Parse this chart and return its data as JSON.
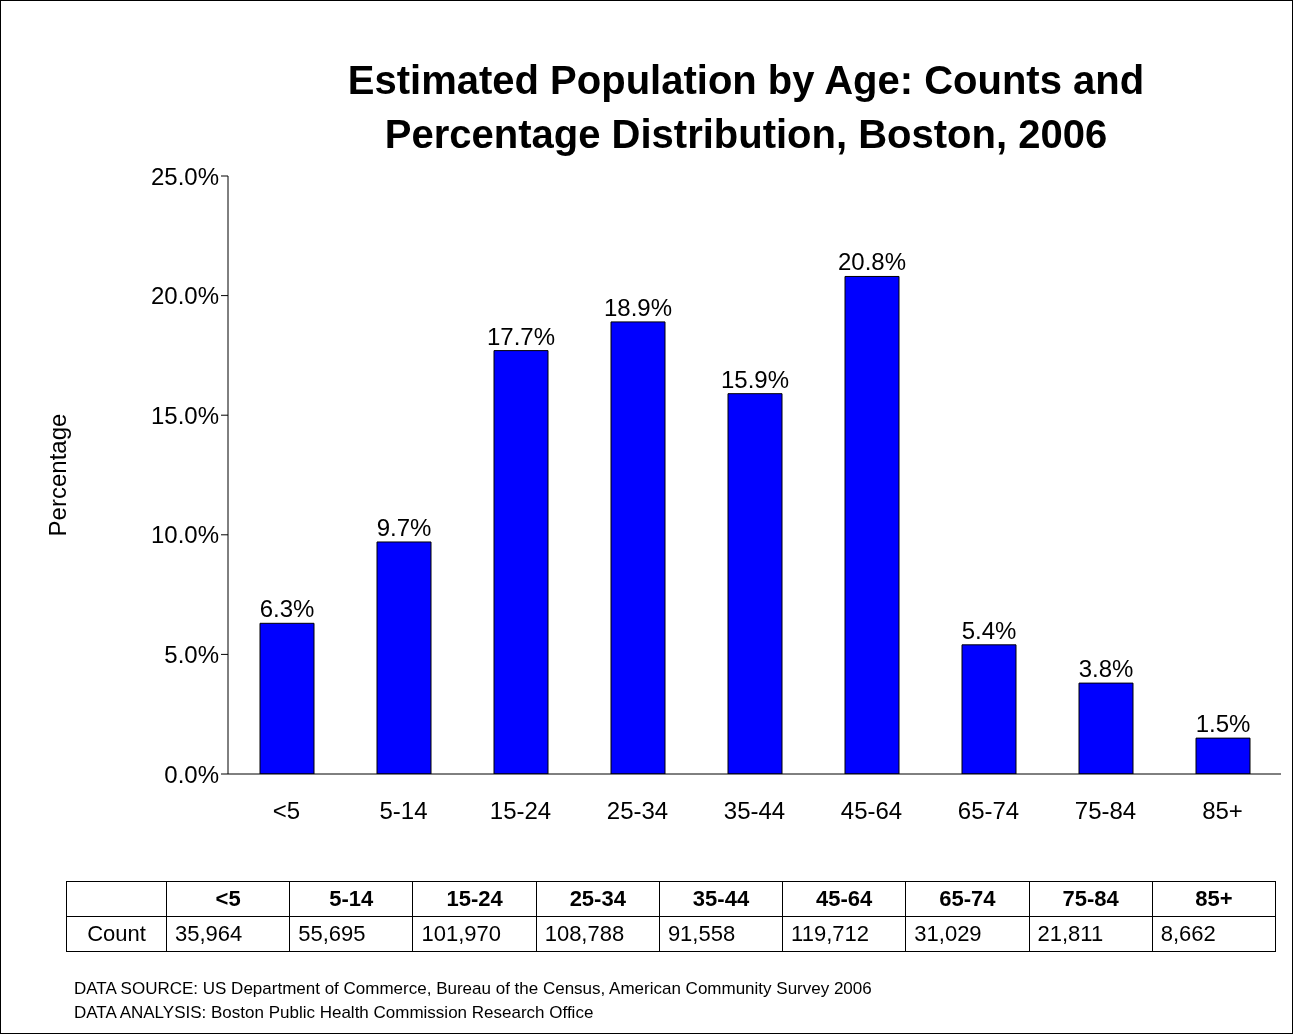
{
  "chart_data": [
    {
      "type": "bar",
      "title": "Estimated Population by Age: Counts and Percentage Distribution, Boston, 2006",
      "ylabel": "Percentage",
      "categories": [
        "<5",
        "5-14",
        "15-24",
        "25-34",
        "35-44",
        "45-64",
        "65-74",
        "75-84",
        "85+"
      ],
      "values": [
        6.3,
        9.7,
        17.7,
        18.9,
        15.9,
        20.8,
        5.4,
        3.8,
        1.5
      ],
      "value_labels": [
        "6.3%",
        "9.7%",
        "17.7%",
        "18.9%",
        "15.9%",
        "20.8%",
        "5.4%",
        "3.8%",
        "1.5%"
      ],
      "color": "#0000ff",
      "ylim": [
        0,
        25
      ],
      "yticks": [
        {
          "value": 0,
          "label": "0.0%"
        },
        {
          "value": 5,
          "label": "5.0%"
        },
        {
          "value": 10,
          "label": "10.0%"
        },
        {
          "value": 15,
          "label": "15.0%"
        },
        {
          "value": 20,
          "label": "20.0%"
        },
        {
          "value": 25,
          "label": "25.0%"
        }
      ],
      "grid": false
    },
    {
      "type": "other",
      "categories": [
        "<5",
        "5-14",
        "15-24",
        "25-34",
        "35-44",
        "45-64",
        "65-74",
        "75-84",
        "85+"
      ],
      "series": [
        {
          "name": "Count",
          "values": [
            35964,
            55695,
            101970,
            108788,
            91558,
            119712,
            31029,
            21811,
            8662
          ],
          "value_labels": [
            "35,964",
            "55,695",
            "101,970",
            "108,788",
            "91,558",
            "119,712",
            "31,029",
            "21,811",
            "8,662"
          ]
        }
      ],
      "annotations": [
        "DATA SOURCE: US Department of Commerce, Bureau of the Census, American Community Survey 2006",
        "DATA ANALYSIS: Boston Public Health Commission Research Office"
      ]
    }
  ]
}
